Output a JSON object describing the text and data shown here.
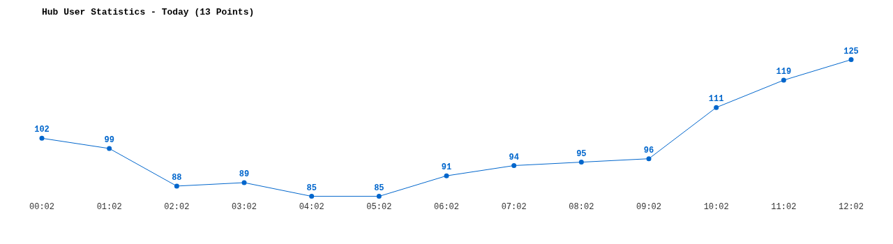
{
  "chart_data": {
    "type": "line",
    "title": "Hub User Statistics - Today (13 Points)",
    "categories": [
      "00:02",
      "01:02",
      "02:02",
      "03:02",
      "04:02",
      "05:02",
      "06:02",
      "07:02",
      "08:02",
      "09:02",
      "10:02",
      "11:02",
      "12:02"
    ],
    "series": [
      {
        "color": "#0066cc",
        "values": [
          102,
          99,
          88,
          89,
          85,
          85,
          91,
          94,
          95,
          96,
          111,
          119,
          125
        ]
      }
    ],
    "data_labels": true,
    "grid": false,
    "legend": false,
    "marker": "circle",
    "line_style": "solid",
    "tick_labels": "x"
  }
}
